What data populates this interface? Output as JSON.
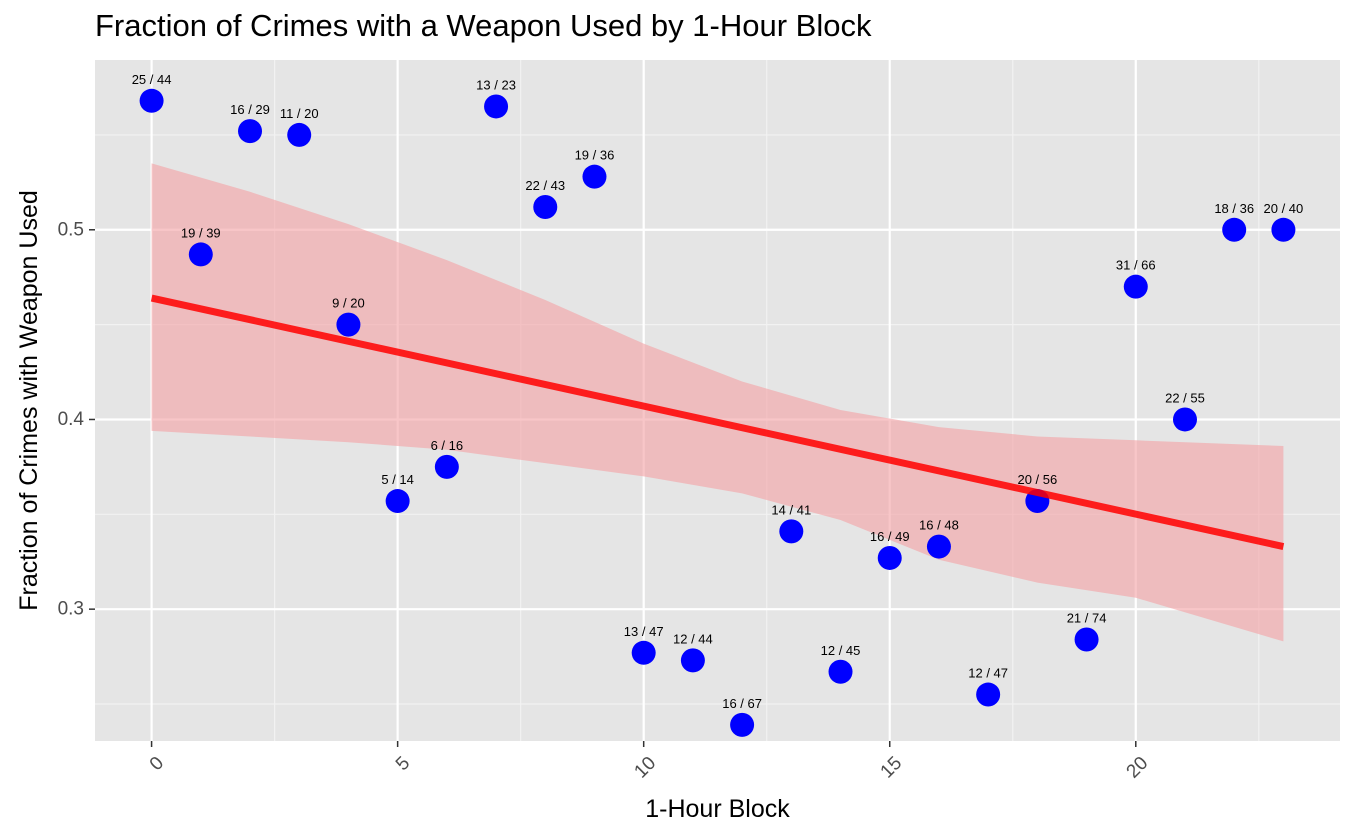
{
  "chart_data": {
    "type": "scatter",
    "title": "Fraction of Crimes with a Weapon Used by 1-Hour Block",
    "xlabel": "1-Hour Block",
    "ylabel": "Fraction of Crimes with Weapon Used",
    "xlim": [
      -1.15,
      24.15
    ],
    "ylim": [
      0.2305,
      0.5895
    ],
    "x_ticks": [
      0,
      5,
      10,
      15,
      20
    ],
    "x_tick_labels": [
      "0",
      "5",
      "10",
      "15",
      "20"
    ],
    "y_ticks": [
      0.3,
      0.4,
      0.5
    ],
    "y_tick_labels": [
      "0.3",
      "0.4",
      "0.5"
    ],
    "grid": true,
    "point_color": "#0000ff",
    "line_color": "#ff0000",
    "band_color": "#f4a3a6",
    "panel_background": "#e5e5e5",
    "points": [
      {
        "x": 0,
        "y": 0.568,
        "label": "25 / 44"
      },
      {
        "x": 1,
        "y": 0.487,
        "label": "19 / 39"
      },
      {
        "x": 2,
        "y": 0.552,
        "label": "16 / 29"
      },
      {
        "x": 3,
        "y": 0.55,
        "label": "11 / 20"
      },
      {
        "x": 4,
        "y": 0.45,
        "label": "9 / 20"
      },
      {
        "x": 5,
        "y": 0.357,
        "label": "5 / 14"
      },
      {
        "x": 6,
        "y": 0.375,
        "label": "6 / 16"
      },
      {
        "x": 7,
        "y": 0.565,
        "label": "13 / 23"
      },
      {
        "x": 8,
        "y": 0.512,
        "label": "22 / 43"
      },
      {
        "x": 9,
        "y": 0.528,
        "label": "19 / 36"
      },
      {
        "x": 10,
        "y": 0.277,
        "label": "13 / 47"
      },
      {
        "x": 11,
        "y": 0.273,
        "label": "12 / 44"
      },
      {
        "x": 12,
        "y": 0.239,
        "label": "16 / 67"
      },
      {
        "x": 13,
        "y": 0.341,
        "label": "14 / 41"
      },
      {
        "x": 14,
        "y": 0.267,
        "label": "12 / 45"
      },
      {
        "x": 15,
        "y": 0.327,
        "label": "16 / 49"
      },
      {
        "x": 16,
        "y": 0.333,
        "label": "16 / 48"
      },
      {
        "x": 17,
        "y": 0.255,
        "label": "12 / 47"
      },
      {
        "x": 18,
        "y": 0.357,
        "label": "20 / 56"
      },
      {
        "x": 19,
        "y": 0.284,
        "label": "21 / 74"
      },
      {
        "x": 20,
        "y": 0.47,
        "label": "31 / 66"
      },
      {
        "x": 21,
        "y": 0.4,
        "label": "22 / 55"
      },
      {
        "x": 22,
        "y": 0.5,
        "label": "18 / 36"
      },
      {
        "x": 23,
        "y": 0.5,
        "label": "20 / 40"
      }
    ],
    "trend_line": {
      "x": [
        0,
        23
      ],
      "y": [
        0.464,
        0.333
      ]
    },
    "confidence_band": {
      "x": [
        0,
        2,
        4,
        6,
        8,
        10,
        12,
        14,
        16,
        18,
        20,
        23
      ],
      "upper": [
        0.535,
        0.52,
        0.503,
        0.484,
        0.463,
        0.44,
        0.42,
        0.405,
        0.396,
        0.391,
        0.389,
        0.386
      ],
      "lower": [
        0.394,
        0.391,
        0.388,
        0.384,
        0.377,
        0.37,
        0.361,
        0.347,
        0.326,
        0.314,
        0.306,
        0.283
      ]
    }
  }
}
